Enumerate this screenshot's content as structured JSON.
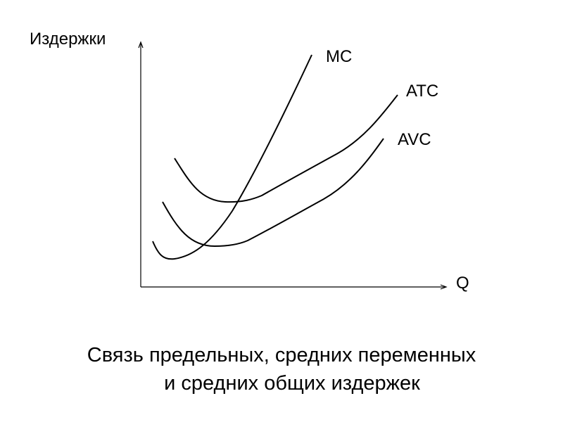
{
  "axes": {
    "y_label": "Издержки",
    "x_label": "Q"
  },
  "curves": [
    {
      "label": "MC"
    },
    {
      "label": "ATC"
    },
    {
      "label": "AVC"
    }
  ],
  "caption": [
    "Связь предельных, средних переменных",
    "и средних общих издержек"
  ]
}
